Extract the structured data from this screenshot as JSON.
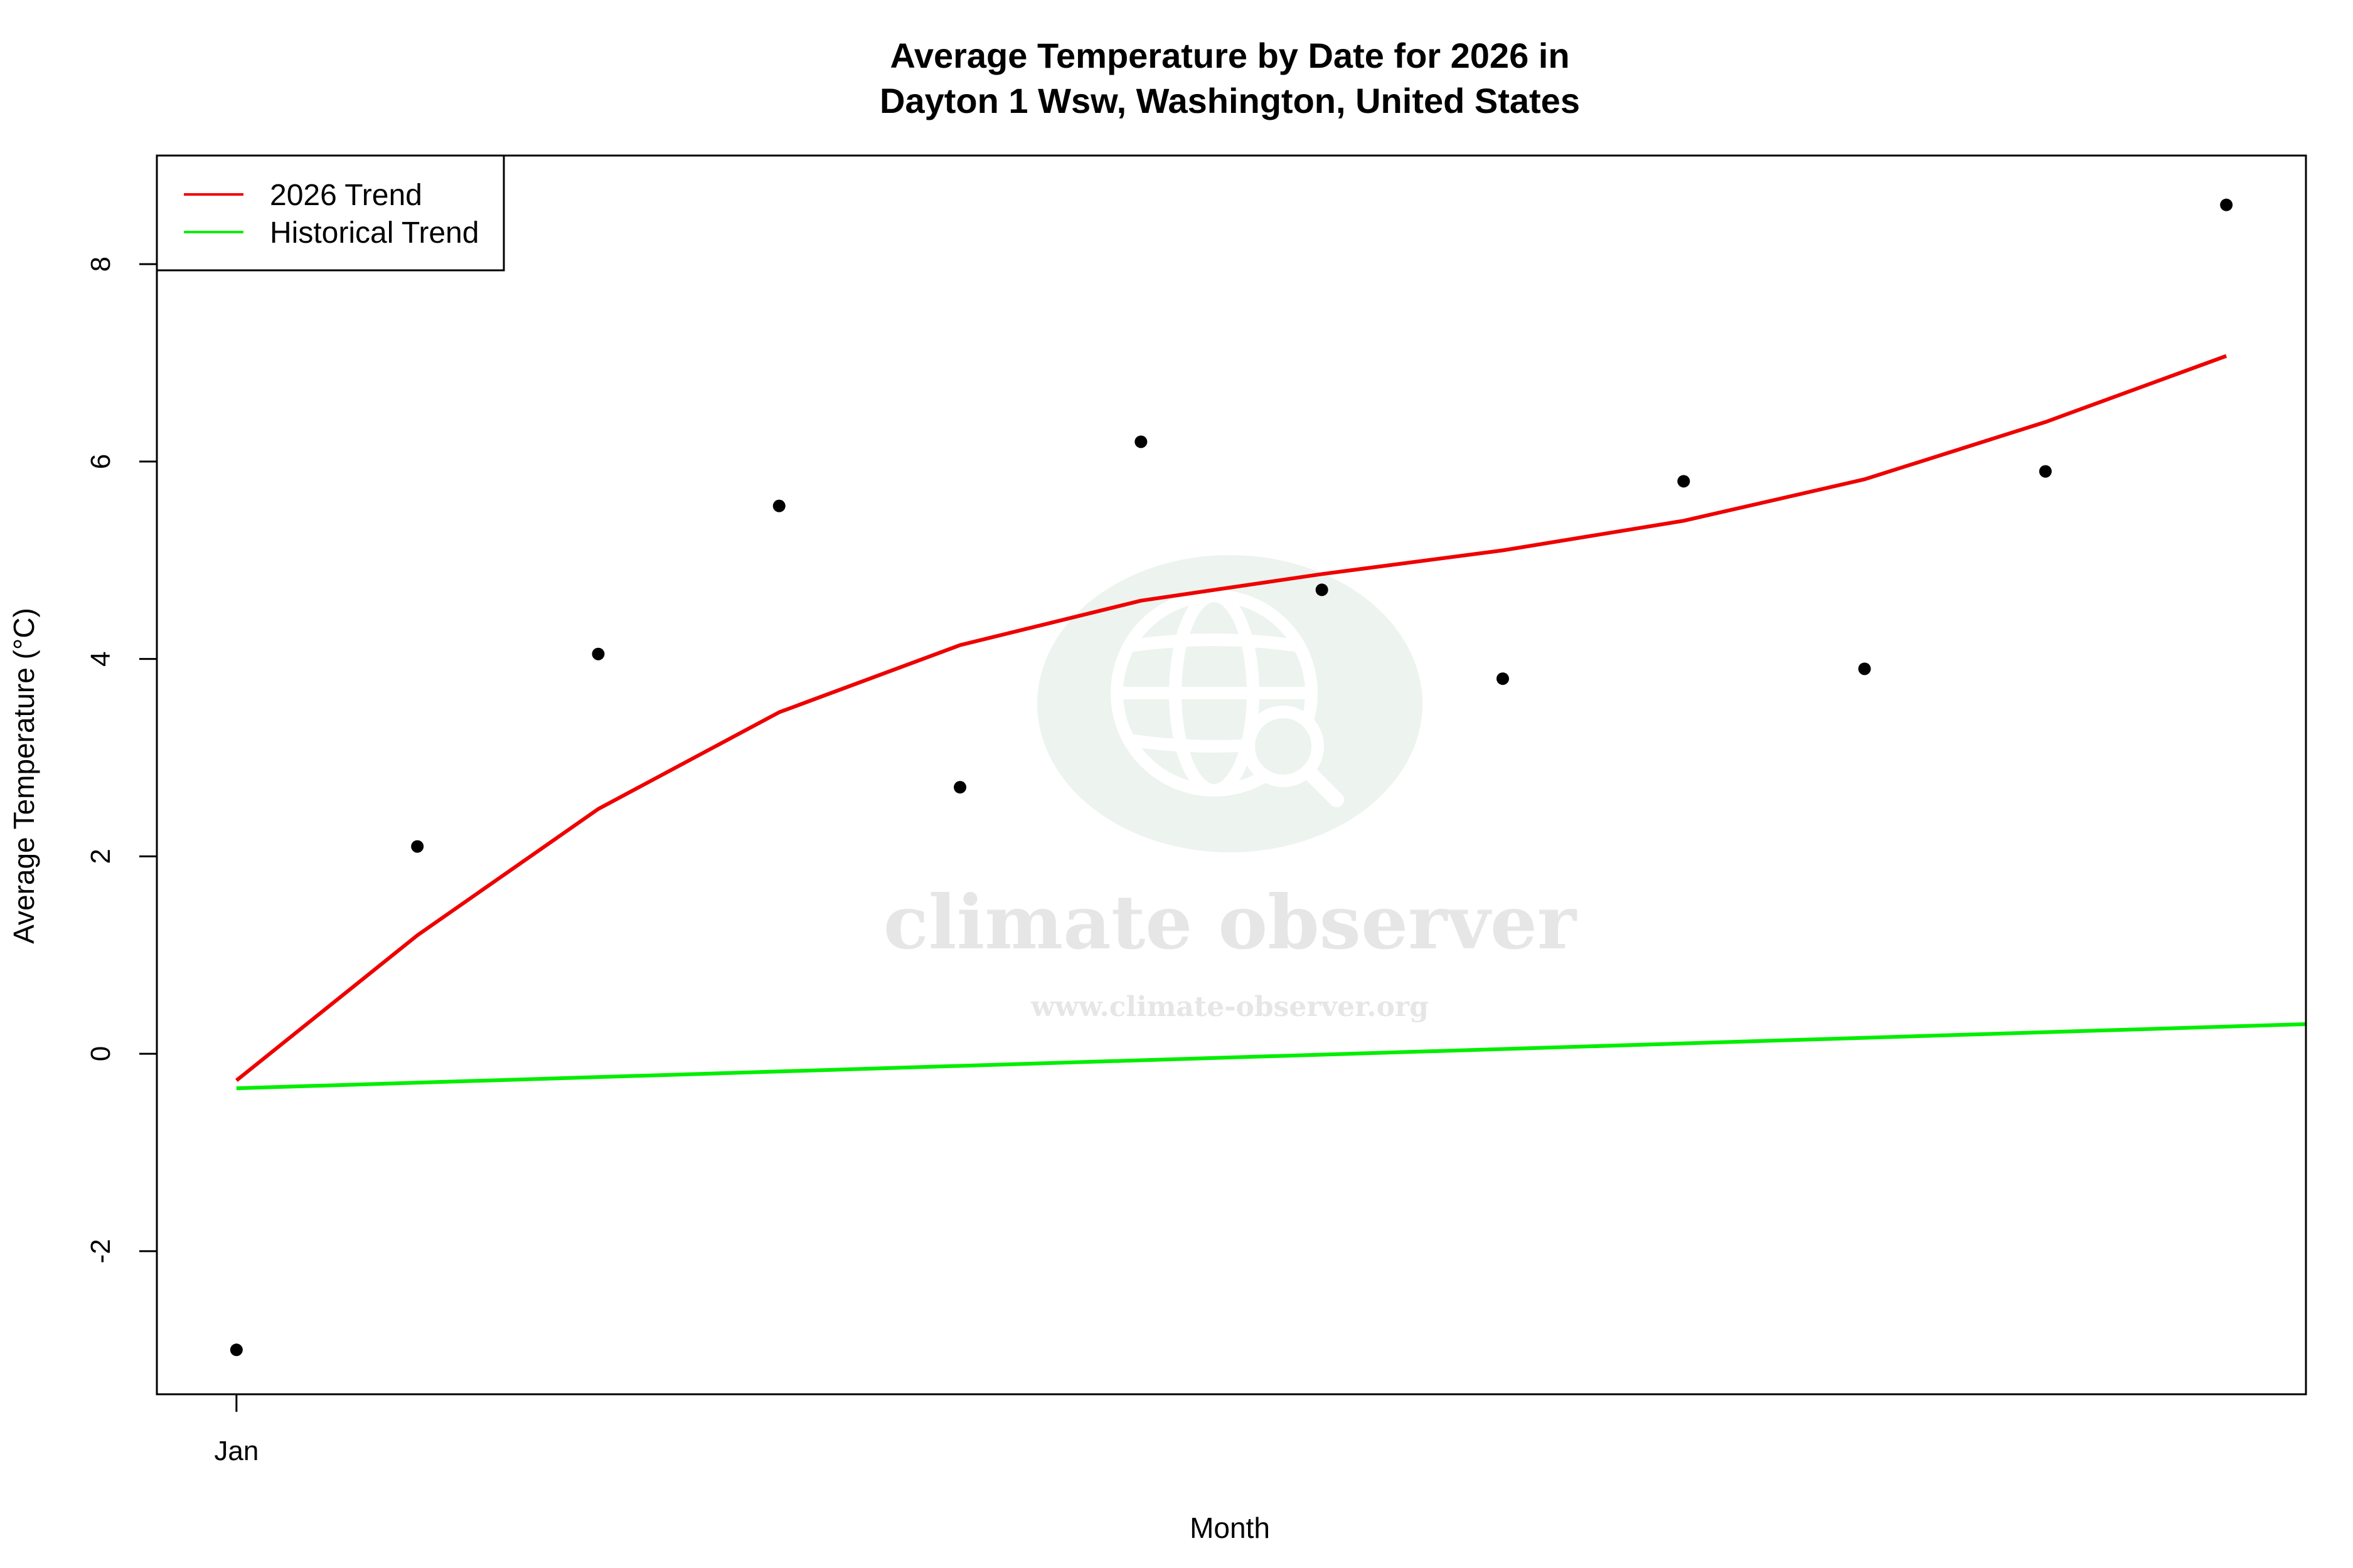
{
  "chart_data": {
    "type": "line",
    "title_line1": "Average Temperature by Date for 2026 in",
    "title_line2": "Dayton 1 Wsw, Washington, United States",
    "xlabel": "Month",
    "ylabel": "Average Temperature (°C)",
    "x_tick_labels": [
      "Jan"
    ],
    "y_ticks": [
      -2,
      0,
      2,
      4,
      6,
      8
    ],
    "ylim": [
      -3.45,
      9.1
    ],
    "x": [
      1,
      2,
      3,
      4,
      5,
      6,
      7,
      8,
      9,
      10,
      11,
      12
    ],
    "xlim": [
      0.56,
      12.44
    ],
    "grid": false,
    "legend_position": "top-left",
    "points": {
      "name": "observations",
      "values": [
        -3.0,
        2.1,
        4.05,
        5.55,
        2.7,
        6.2,
        4.7,
        3.8,
        5.8,
        3.9,
        5.9,
        8.6
      ],
      "color": "#000000"
    },
    "series": [
      {
        "name": "2026 Trend",
        "color": "#ee0000",
        "values": [
          -0.27,
          1.2,
          2.48,
          3.46,
          4.14,
          4.59,
          4.86,
          5.1,
          5.4,
          5.82,
          6.4,
          7.07
        ]
      },
      {
        "name": "Historical Trend",
        "color": "#00ee00",
        "x_end": 12.44,
        "y_start": -0.35,
        "y_end": 0.3
      }
    ]
  },
  "watermark": {
    "title": "climate observer",
    "url": "www.climate-observer.org"
  }
}
